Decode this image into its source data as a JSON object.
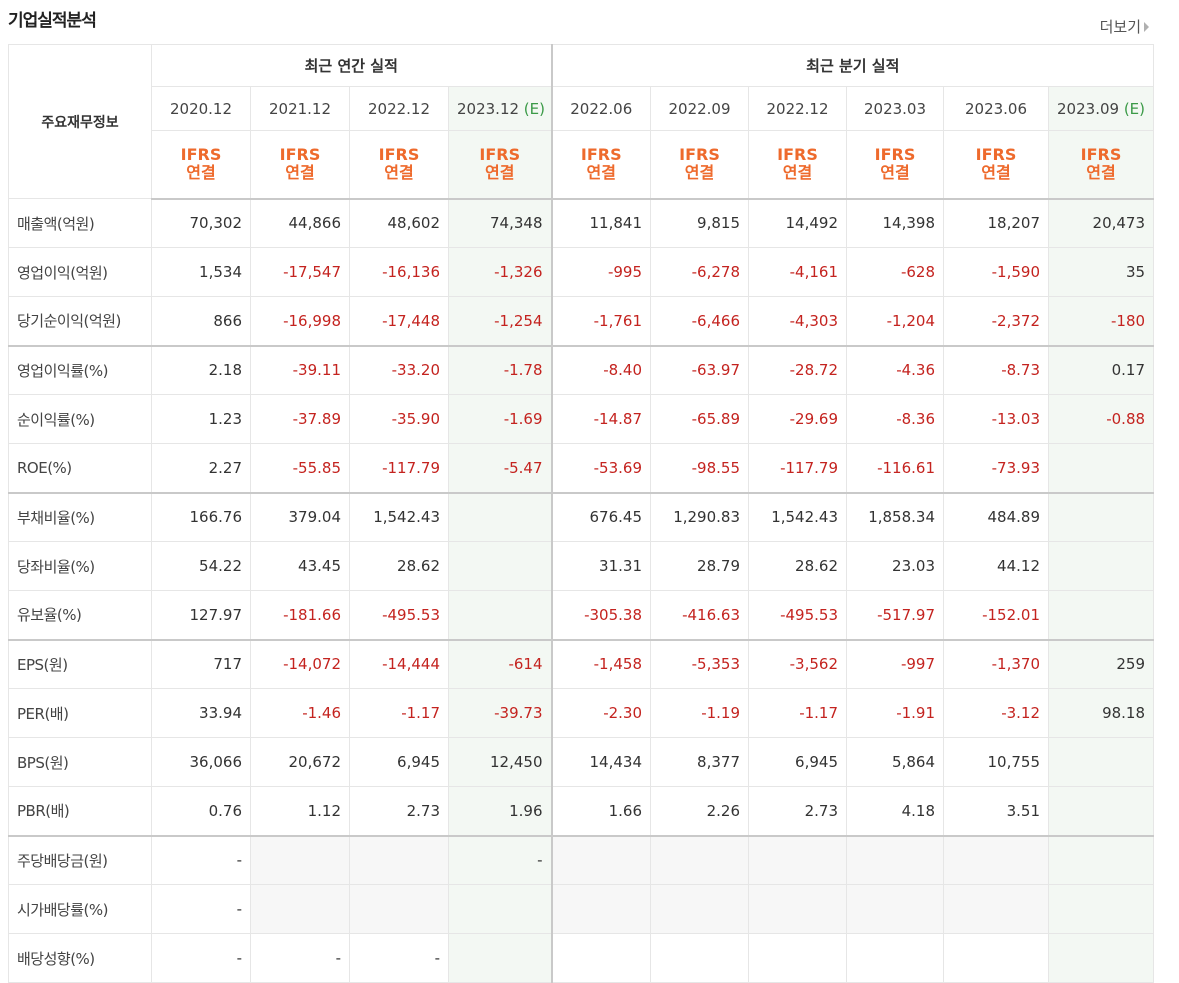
{
  "header": {
    "title": "기업실적분석",
    "more_label": "더보기"
  },
  "table": {
    "corner_label": "주요재무정보",
    "groups": {
      "annual": "최근 연간 실적",
      "quarter": "최근 분기 실적"
    },
    "periods": [
      {
        "label": "2020.12",
        "est": ""
      },
      {
        "label": "2021.12",
        "est": ""
      },
      {
        "label": "2022.12",
        "est": ""
      },
      {
        "label": "2023.12",
        "est": "(E)"
      },
      {
        "label": "2022.06",
        "est": ""
      },
      {
        "label": "2022.09",
        "est": ""
      },
      {
        "label": "2022.12",
        "est": ""
      },
      {
        "label": "2023.03",
        "est": ""
      },
      {
        "label": "2023.06",
        "est": ""
      },
      {
        "label": "2023.09",
        "est": "(E)"
      }
    ],
    "basis": {
      "line1": "IFRS",
      "line2": "연결"
    },
    "rows": [
      {
        "label": "매출액(억원)",
        "values": [
          "70,302",
          "44,866",
          "48,602",
          "74,348",
          "11,841",
          "9,815",
          "14,492",
          "14,398",
          "18,207",
          "20,473"
        ]
      },
      {
        "label": "영업이익(억원)",
        "values": [
          "1,534",
          "-17,547",
          "-16,136",
          "-1,326",
          "-995",
          "-6,278",
          "-4,161",
          "-628",
          "-1,590",
          "35"
        ]
      },
      {
        "label": "당기순이익(억원)",
        "values": [
          "866",
          "-16,998",
          "-17,448",
          "-1,254",
          "-1,761",
          "-6,466",
          "-4,303",
          "-1,204",
          "-2,372",
          "-180"
        ]
      },
      {
        "label": "영업이익률(%)",
        "values": [
          "2.18",
          "-39.11",
          "-33.20",
          "-1.78",
          "-8.40",
          "-63.97",
          "-28.72",
          "-4.36",
          "-8.73",
          "0.17"
        ]
      },
      {
        "label": "순이익률(%)",
        "values": [
          "1.23",
          "-37.89",
          "-35.90",
          "-1.69",
          "-14.87",
          "-65.89",
          "-29.69",
          "-8.36",
          "-13.03",
          "-0.88"
        ]
      },
      {
        "label": "ROE(%)",
        "values": [
          "2.27",
          "-55.85",
          "-117.79",
          "-5.47",
          "-53.69",
          "-98.55",
          "-117.79",
          "-116.61",
          "-73.93",
          ""
        ]
      },
      {
        "label": "부채비율(%)",
        "values": [
          "166.76",
          "379.04",
          "1,542.43",
          "",
          "676.45",
          "1,290.83",
          "1,542.43",
          "1,858.34",
          "484.89",
          ""
        ]
      },
      {
        "label": "당좌비율(%)",
        "values": [
          "54.22",
          "43.45",
          "28.62",
          "",
          "31.31",
          "28.79",
          "28.62",
          "23.03",
          "44.12",
          ""
        ]
      },
      {
        "label": "유보율(%)",
        "values": [
          "127.97",
          "-181.66",
          "-495.53",
          "",
          "-305.38",
          "-416.63",
          "-495.53",
          "-517.97",
          "-152.01",
          ""
        ]
      },
      {
        "label": "EPS(원)",
        "values": [
          "717",
          "-14,072",
          "-14,444",
          "-614",
          "-1,458",
          "-5,353",
          "-3,562",
          "-997",
          "-1,370",
          "259"
        ]
      },
      {
        "label": "PER(배)",
        "values": [
          "33.94",
          "-1.46",
          "-1.17",
          "-39.73",
          "-2.30",
          "-1.19",
          "-1.17",
          "-1.91",
          "-3.12",
          "98.18"
        ]
      },
      {
        "label": "BPS(원)",
        "values": [
          "36,066",
          "20,672",
          "6,945",
          "12,450",
          "14,434",
          "8,377",
          "6,945",
          "5,864",
          "10,755",
          ""
        ]
      },
      {
        "label": "PBR(배)",
        "values": [
          "0.76",
          "1.12",
          "2.73",
          "1.96",
          "1.66",
          "2.26",
          "2.73",
          "4.18",
          "3.51",
          ""
        ]
      },
      {
        "label": "주당배당금(원)",
        "values": [
          "-",
          "",
          "",
          "-",
          "",
          "",
          "",
          "",
          "",
          ""
        ]
      },
      {
        "label": "시가배당률(%)",
        "values": [
          "-",
          "",
          "",
          "",
          "",
          "",
          "",
          "",
          "",
          ""
        ]
      },
      {
        "label": "배당성향(%)",
        "values": [
          "-",
          "-",
          "-",
          "",
          "",
          "",
          "",
          "",
          "",
          ""
        ]
      }
    ],
    "colors": {
      "negative": "#c4231f",
      "ifrs": "#ee6a2c",
      "estimate": "#3b9a47",
      "estimate_bg": "#f3f8f3"
    }
  }
}
